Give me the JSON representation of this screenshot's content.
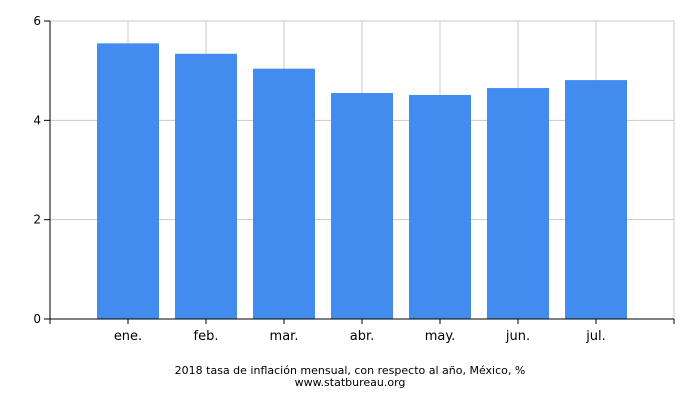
{
  "chart_data": {
    "type": "bar",
    "title": "2018 tasa de inflación mensual, con respecto al año, México, %",
    "source": "www.statbureau.org",
    "categories": [
      "ene.",
      "feb.",
      "mar.",
      "abr.",
      "may.",
      "jun.",
      "jul."
    ],
    "values": [
      5.55,
      5.34,
      5.04,
      4.55,
      4.51,
      4.65,
      4.81
    ],
    "ylim": [
      0,
      6
    ],
    "yticks": [
      0,
      2,
      4,
      6
    ],
    "ytick_labels": [
      "0",
      "2",
      "4",
      "6"
    ],
    "xlabel": "",
    "ylabel": "",
    "grid": true,
    "bar_color": "#428bef",
    "grid_color": "#c8c8c8"
  }
}
